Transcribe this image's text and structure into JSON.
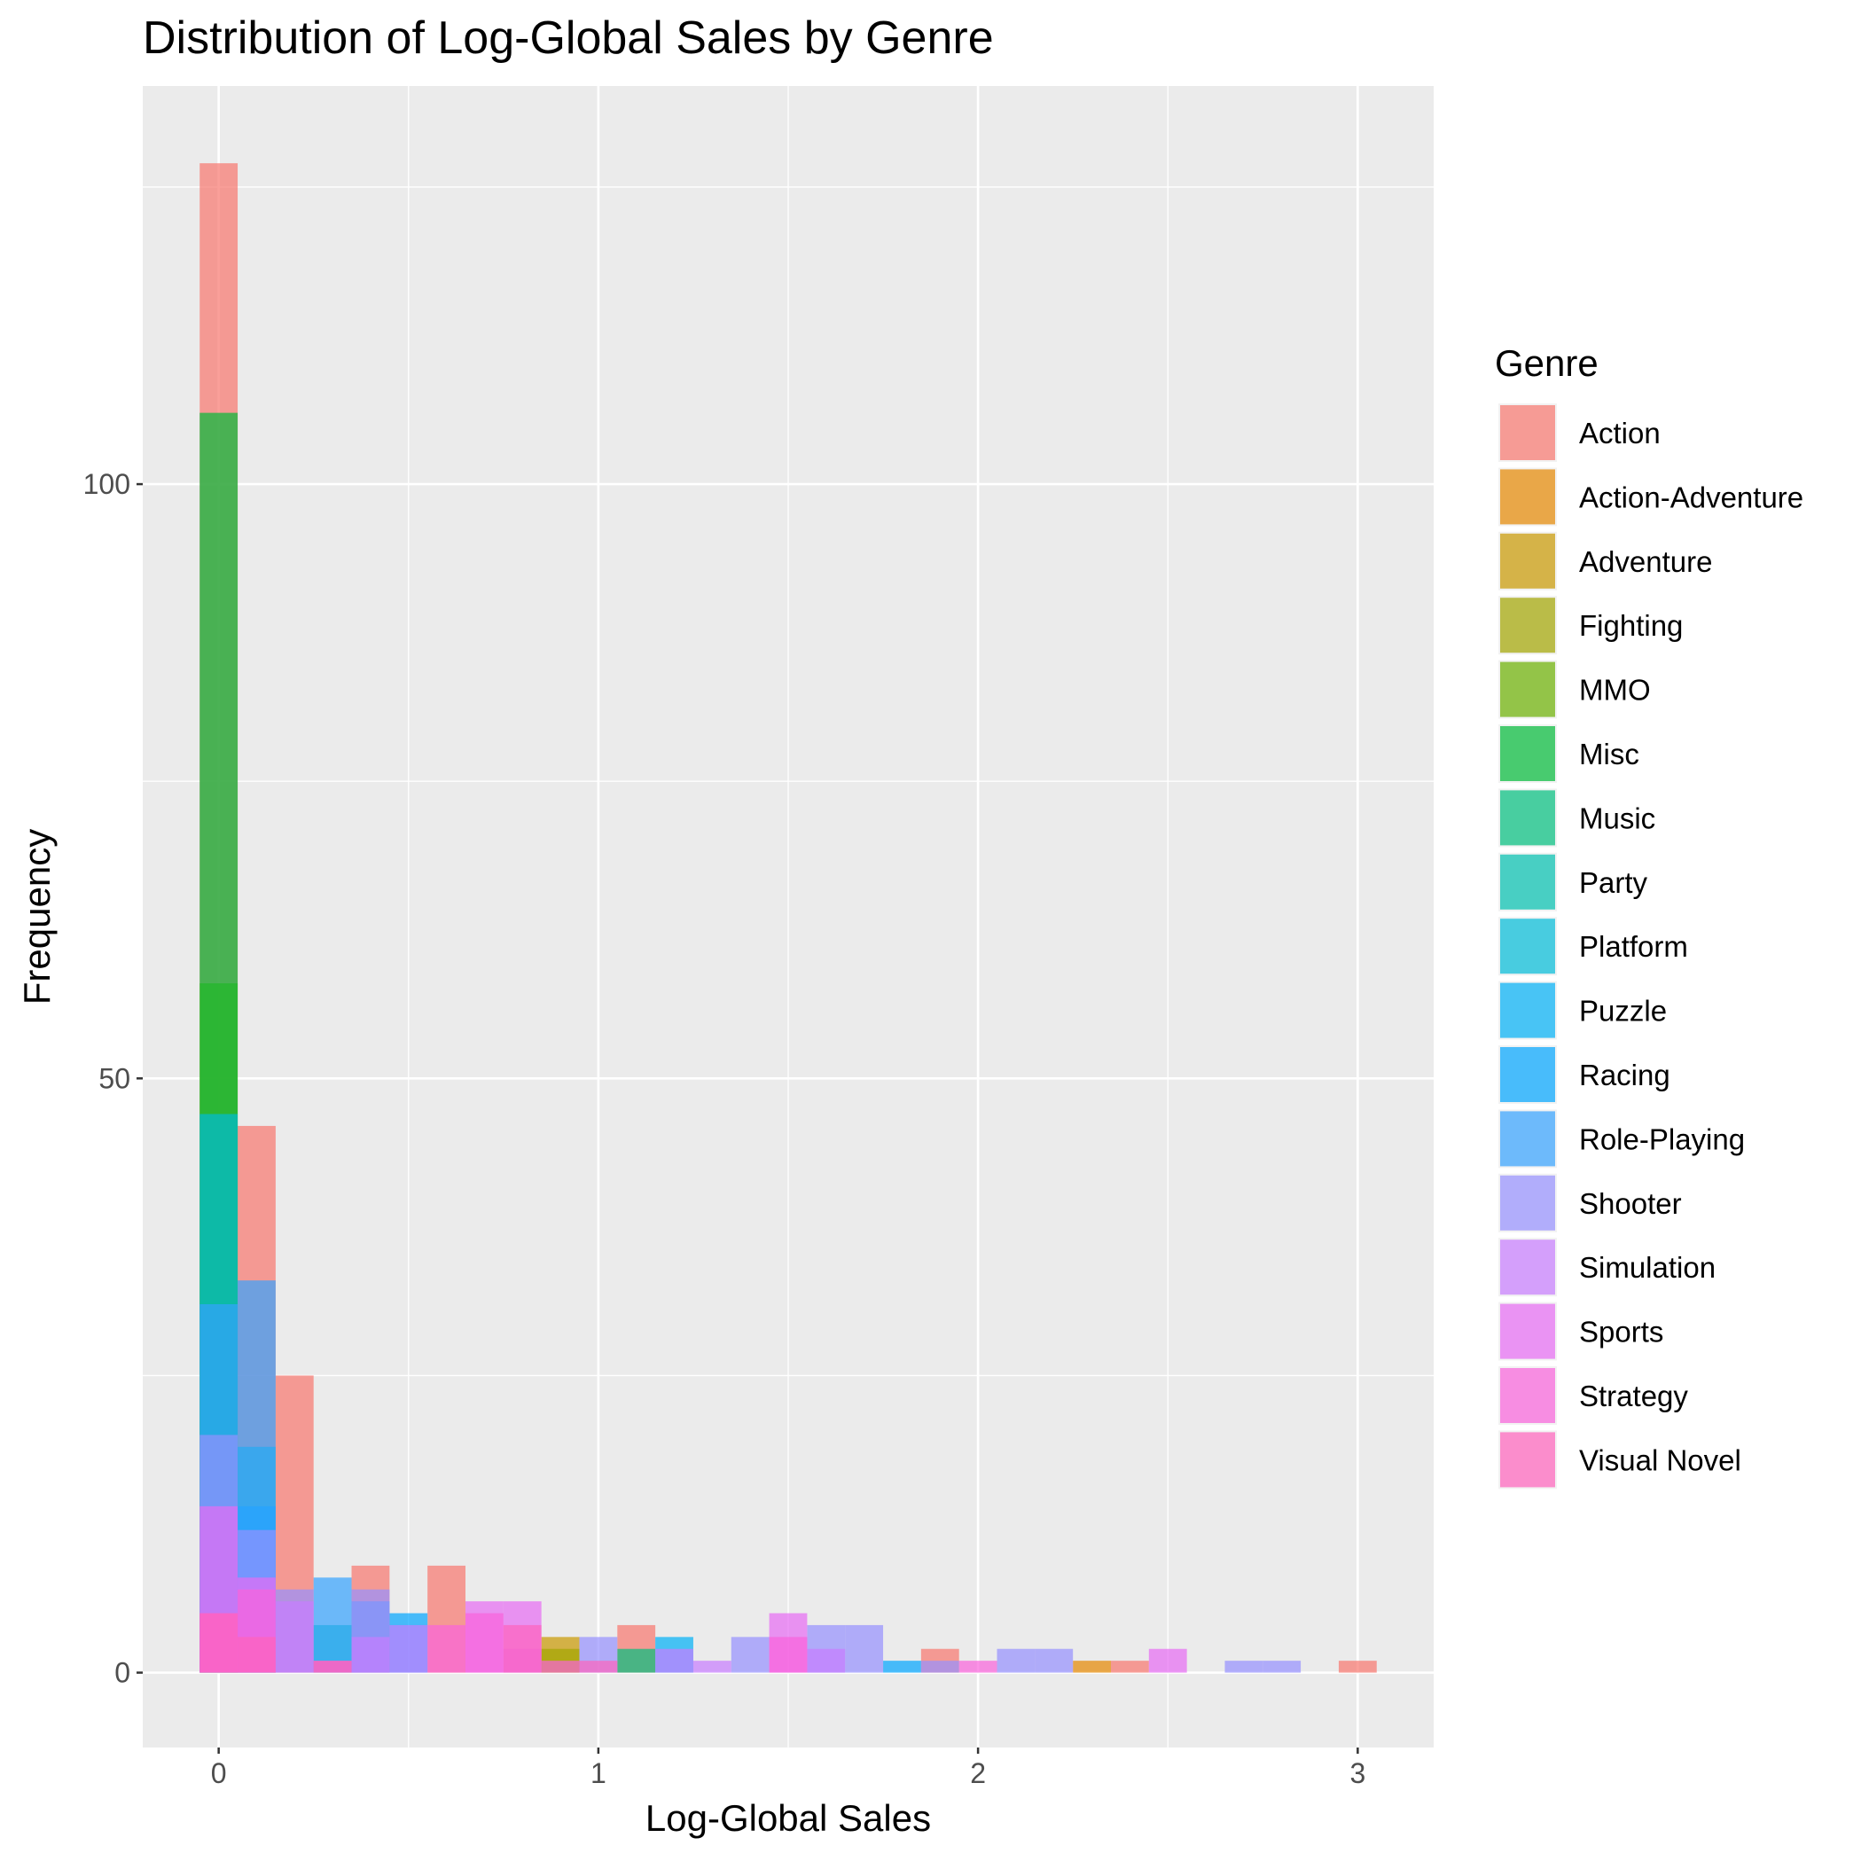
{
  "chart_data": {
    "type": "bar",
    "title": "Distribution of Log-Global Sales by Genre",
    "xlabel": "Log-Global Sales",
    "ylabel": "Frequency",
    "xlim": [
      -0.2,
      3.2
    ],
    "ylim": [
      -6.3,
      133.5
    ],
    "x_ticks": [
      0,
      1,
      2,
      3
    ],
    "y_ticks": [
      0,
      50,
      100
    ],
    "grid": true,
    "legend_title": "Genre",
    "legend_position": "right",
    "bin_width": 0.1,
    "bar_opacity": 0.7,
    "series": [
      {
        "name": "Action",
        "color": "#F8766D",
        "bins": [
          [
            0,
            127
          ],
          [
            0.1,
            46
          ],
          [
            0.2,
            25
          ],
          [
            0.4,
            9
          ],
          [
            0.6,
            9
          ],
          [
            1.1,
            4
          ],
          [
            1.9,
            2
          ],
          [
            2.4,
            1
          ],
          [
            3.0,
            1
          ]
        ]
      },
      {
        "name": "Action-Adventure",
        "color": "#E58700",
        "bins": [
          [
            2.3,
            1
          ]
        ]
      },
      {
        "name": "Adventure",
        "color": "#C99800",
        "bins": [
          [
            0.9,
            3
          ]
        ]
      },
      {
        "name": "Fighting",
        "color": "#A3A500",
        "bins": [
          [
            0.9,
            2
          ]
        ]
      },
      {
        "name": "MMO",
        "color": "#6BB100",
        "bins": [
          [
            0,
            58
          ]
        ]
      },
      {
        "name": "Misc",
        "color": "#00BA38",
        "bins": [
          [
            0,
            106
          ]
        ]
      },
      {
        "name": "Music",
        "color": "#00BF7D",
        "bins": [
          [
            1.1,
            2
          ]
        ]
      },
      {
        "name": "Party",
        "color": "#00C0AF",
        "bins": [
          [
            0.3,
            4
          ]
        ]
      },
      {
        "name": "Platform",
        "color": "#00BCD8",
        "bins": [
          [
            0,
            47
          ],
          [
            0.1,
            19
          ]
        ]
      },
      {
        "name": "Puzzle",
        "color": "#00B0F6",
        "bins": [
          [
            1.2,
            3
          ]
        ]
      },
      {
        "name": "Racing",
        "color": "#00A5FF",
        "bins": [
          [
            0.1,
            14
          ],
          [
            0.5,
            5
          ],
          [
            1.8,
            1
          ]
        ]
      },
      {
        "name": "Role-Playing",
        "color": "#35A2FF",
        "bins": [
          [
            0,
            31
          ],
          [
            0.1,
            33
          ],
          [
            0.3,
            8
          ],
          [
            0.4,
            6
          ]
        ]
      },
      {
        "name": "Shooter",
        "color": "#9590FF",
        "bins": [
          [
            0,
            20
          ],
          [
            0.1,
            12
          ],
          [
            0.2,
            7
          ],
          [
            0.4,
            7
          ],
          [
            1.0,
            3
          ],
          [
            1.4,
            3
          ],
          [
            1.6,
            4
          ],
          [
            1.7,
            4
          ],
          [
            1.9,
            1
          ],
          [
            2.1,
            2
          ],
          [
            2.2,
            2
          ],
          [
            2.7,
            1
          ],
          [
            2.8,
            1
          ]
        ]
      },
      {
        "name": "Simulation",
        "color": "#C77CFF",
        "bins": [
          [
            0.2,
            6
          ],
          [
            0.4,
            3
          ],
          [
            0.5,
            4
          ],
          [
            0.8,
            2
          ],
          [
            1.2,
            2
          ],
          [
            1.3,
            1
          ],
          [
            1.6,
            2
          ]
        ]
      },
      {
        "name": "Sports",
        "color": "#E76BF3",
        "bins": [
          [
            0,
            14
          ],
          [
            0.1,
            8
          ],
          [
            0.7,
            6
          ],
          [
            0.8,
            6
          ],
          [
            1.5,
            5
          ],
          [
            2.5,
            2
          ]
        ]
      },
      {
        "name": "Strategy",
        "color": "#FA62DB",
        "bins": [
          [
            0,
            5
          ],
          [
            0.1,
            7
          ],
          [
            0.3,
            1
          ],
          [
            0.6,
            4
          ],
          [
            0.7,
            5
          ],
          [
            0.9,
            1
          ],
          [
            1.5,
            3
          ],
          [
            2.0,
            1
          ]
        ]
      },
      {
        "name": "Visual Novel",
        "color": "#FF62BC",
        "bins": [
          [
            0,
            5
          ],
          [
            0.1,
            3
          ],
          [
            0.3,
            1
          ],
          [
            0.8,
            4
          ],
          [
            1.0,
            1
          ]
        ]
      }
    ]
  }
}
